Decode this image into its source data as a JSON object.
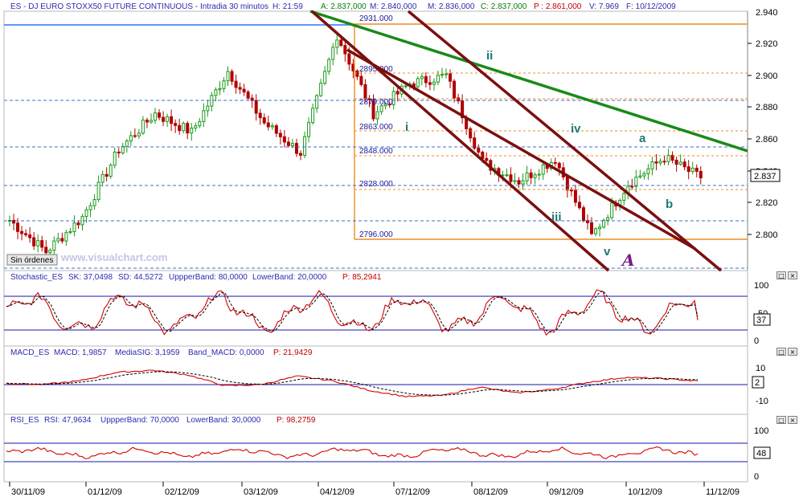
{
  "header": {
    "instrument": "ES - DJ EURO STOXX50 FUTURE CONTINUOUS - Intradia 30 minutos",
    "h_time": "H: 21:59",
    "a": "A: 2.837,000",
    "m": "M: 2.840,000",
    "m2": "M: 2.836,000",
    "c": "C: 2.837,000",
    "p": "P : 2.861,000",
    "v": "V: 7.969",
    "f": "F: 10/12/2009"
  },
  "colors": {
    "candle_up": "#1a9a1a",
    "candle_down": "#b00000",
    "channel": "#7b0f0f",
    "trend_green": "#1a8a1a",
    "fib": "#f08c20",
    "dash_blue": "#3d6fd0",
    "osc_red": "#d40000",
    "osc_blue": "#1616b0",
    "wave_label": "#1b7a78",
    "a_label": "#7a1a8a"
  },
  "watermark": "www.visualchart.com",
  "orders_badge": "Sin órdenes",
  "price_box": "2.837",
  "main_chart": {
    "fib_levels": [
      {
        "label": "2931.000",
        "value": 2931
      },
      {
        "label": "2895.000",
        "value": 2895
      },
      {
        "label": "2879.000",
        "value": 2879
      },
      {
        "label": "2863.000",
        "value": 2863
      },
      {
        "label": "2848.000",
        "value": 2848
      },
      {
        "label": "2828.000",
        "value": 2828
      },
      {
        "label": "2796.000",
        "value": 2796
      }
    ],
    "y_ticks": [
      "2.920",
      "2.900",
      "2.880",
      "2.860",
      "2.840",
      "2.820",
      "2.800"
    ],
    "y_top_partial": "2.940",
    "wave_labels": [
      "i",
      "ii",
      "iii",
      "iv",
      "v",
      "a",
      "b"
    ],
    "big_label": "A"
  },
  "panels": {
    "stoch": {
      "title": "Stochastic_ES",
      "sk": "SK: 37,0498",
      "sd": "SD: 44,5272",
      "upper": "UppperBand: 80,0000",
      "lower": "LowerBand: 20,0000",
      "p": "P: 85,2941",
      "ticks": [
        "100",
        "50",
        "0"
      ],
      "current": "37"
    },
    "macd": {
      "title": "MACD_ES",
      "macd": "MACD: 1,9857",
      "sig": "MediaSIG: 3,1959",
      "band": "Band_MACD: 0,0000",
      "p": "P: 21,9429",
      "ticks": [
        "10",
        "0",
        "-10"
      ],
      "current": "2"
    },
    "rsi": {
      "title": "RSI_ES",
      "rsi": "RSI: 47,9634",
      "upper": "UppperBand: 70,0000",
      "lower": "LowerBand: 30,0000",
      "p": "P: 98,2759",
      "ticks": [
        "100",
        "50",
        "0"
      ],
      "current": "48"
    }
  },
  "dates": [
    "30/11/09",
    "01/12/09",
    "02/12/09",
    "03/12/09",
    "04/12/09",
    "07/12/09",
    "08/12/09",
    "09/12/09",
    "10/12/09",
    "11/12/09"
  ],
  "chart_data": {
    "type": "candlestick",
    "title": "ES - DJ EURO STOXX50 FUTURE CONTINUOUS - Intradia 30 minutos",
    "timeframe": "30 minutos",
    "last_close": 2837,
    "ylim": [
      2778,
      2943
    ],
    "x_dates": [
      "30/11/09",
      "01/12/09",
      "02/12/09",
      "03/12/09",
      "04/12/09",
      "07/12/09",
      "08/12/09",
      "09/12/09",
      "10/12/09",
      "11/12/09"
    ],
    "close_path": [
      {
        "date": "30/11/09",
        "close": 2810
      },
      {
        "date": "30/11/09 pm",
        "close": 2790
      },
      {
        "date": "01/12/09",
        "close": 2812
      },
      {
        "date": "01/12/09 pm",
        "close": 2855
      },
      {
        "date": "02/12/09",
        "close": 2878
      },
      {
        "date": "02/12/09 pm",
        "close": 2866
      },
      {
        "date": "03/12/09",
        "close": 2905
      },
      {
        "date": "03/12/09 pm",
        "close": 2872
      },
      {
        "date": "04/12/09",
        "close": 2853
      },
      {
        "date": "04/12/09 pm",
        "close": 2928
      },
      {
        "date": "07/12/09",
        "close": 2878
      },
      {
        "date": "07/12/09 pm",
        "close": 2897
      },
      {
        "date": "08/12/09",
        "close": 2902
      },
      {
        "date": "08/12/09 pm",
        "close": 2847
      },
      {
        "date": "09/12/09",
        "close": 2835
      },
      {
        "date": "09/12/09 mid",
        "close": 2849
      },
      {
        "date": "09/12/09 pm",
        "close": 2800
      },
      {
        "date": "10/12/09",
        "close": 2833
      },
      {
        "date": "10/12/09 mid",
        "close": 2850
      },
      {
        "date": "10/12/09 pm",
        "close": 2837
      }
    ],
    "fibonacci_levels": [
      2931,
      2895,
      2879,
      2863,
      2848,
      2828,
      2796
    ],
    "indicators": [
      {
        "name": "Stochastic_ES",
        "SK": 37.0498,
        "SD": 44.5272,
        "upper_band": 80,
        "lower_band": 20,
        "ylim": [
          0,
          100
        ]
      },
      {
        "name": "MACD_ES",
        "MACD": 1.9857,
        "MediaSIG": 3.1959,
        "band": 0,
        "ylim": [
          -15,
          15
        ]
      },
      {
        "name": "RSI_ES",
        "RSI": 47.9634,
        "upper_band": 70,
        "lower_band": 30,
        "ylim": [
          0,
          100
        ]
      }
    ]
  }
}
